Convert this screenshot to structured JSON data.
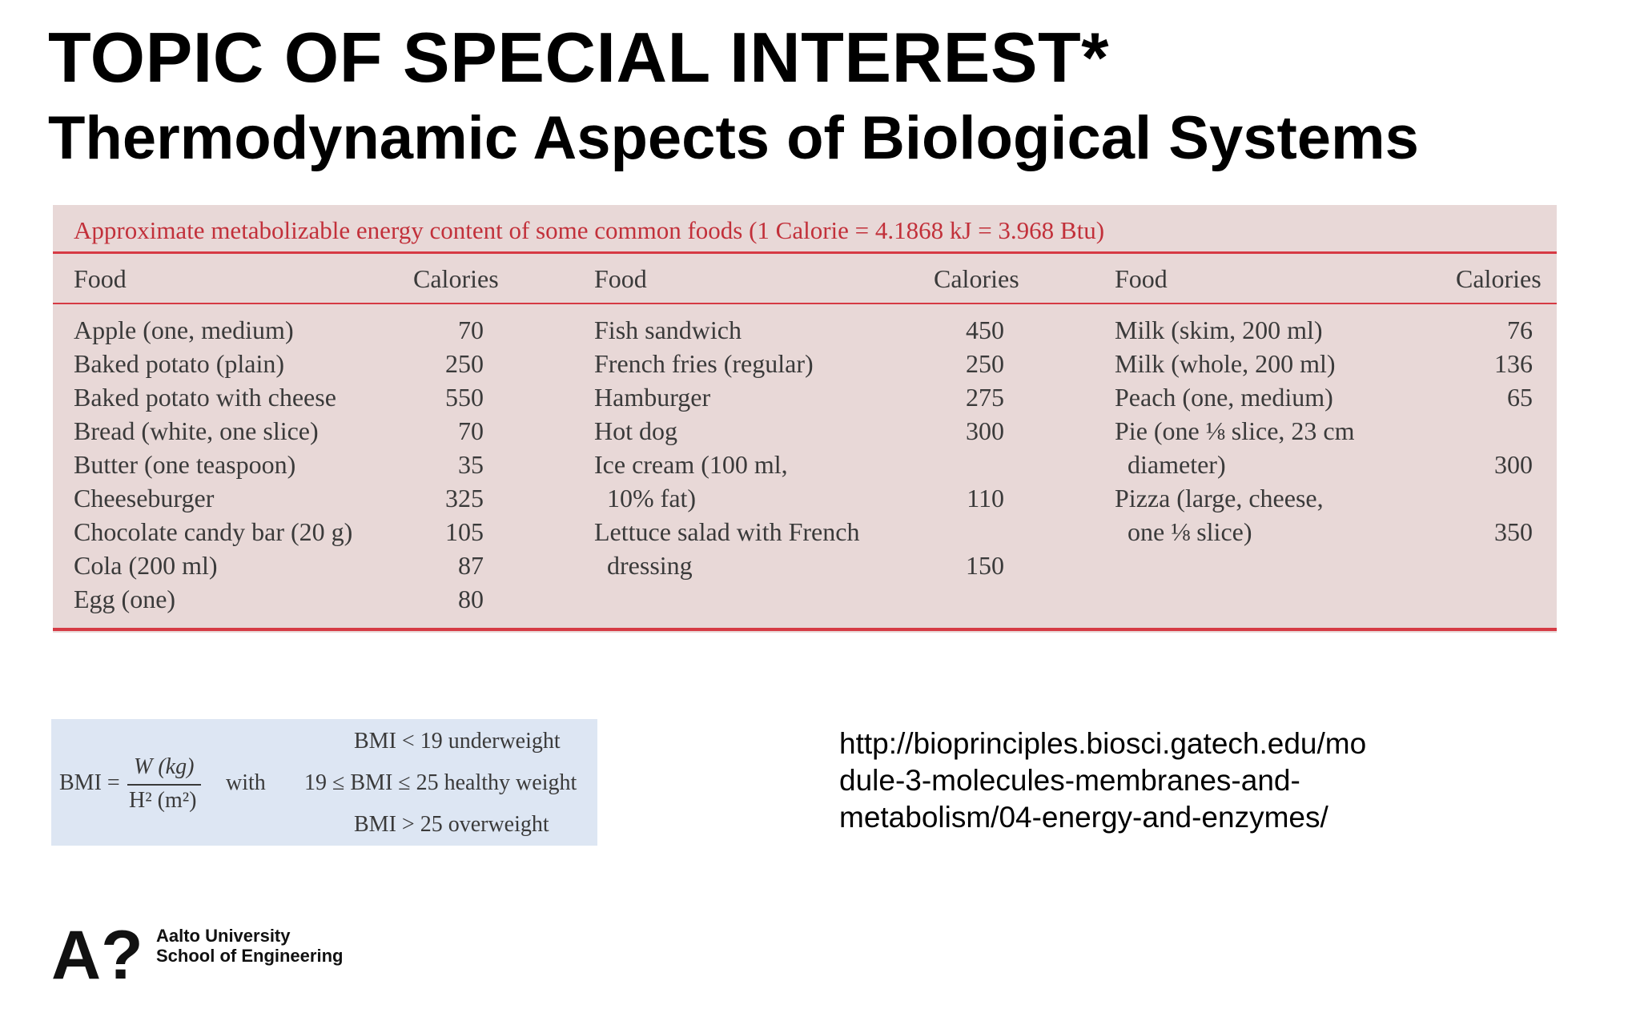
{
  "slide": {
    "title": "TOPIC OF SPECIAL INTEREST*",
    "subtitle": "Thermodynamic Aspects of Biological Systems"
  },
  "food_table": {
    "caption": "Approximate metabolizable energy content of some common foods (1 Calorie = 4.1868 kJ = 3.968 Btu)",
    "headers": {
      "food": "Food",
      "calories": "Calories"
    },
    "columns": [
      {
        "rows": [
          {
            "food": "Apple (one, medium)",
            "calories": "70"
          },
          {
            "food": "Baked potato (plain)",
            "calories": "250"
          },
          {
            "food": "Baked potato with cheese",
            "calories": "550"
          },
          {
            "food": "Bread (white, one slice)",
            "calories": "70"
          },
          {
            "food": "Butter (one teaspoon)",
            "calories": "35"
          },
          {
            "food": "Cheeseburger",
            "calories": "325"
          },
          {
            "food": "Chocolate candy bar (20 g)",
            "calories": "105"
          },
          {
            "food": "Cola (200 ml)",
            "calories": "87"
          },
          {
            "food": "Egg (one)",
            "calories": "80"
          }
        ]
      },
      {
        "rows": [
          {
            "food": "Fish sandwich",
            "calories": "450"
          },
          {
            "food": "French fries (regular)",
            "calories": "250"
          },
          {
            "food": "Hamburger",
            "calories": "275"
          },
          {
            "food": "Hot dog",
            "calories": "300"
          },
          {
            "food": "Ice cream (100 ml,",
            "calories": ""
          },
          {
            "food": "  10% fat)",
            "calories": "110"
          },
          {
            "food": "Lettuce salad with French",
            "calories": ""
          },
          {
            "food": "  dressing",
            "calories": "150"
          }
        ]
      },
      {
        "rows": [
          {
            "food": "Milk (skim, 200 ml)",
            "calories": "76"
          },
          {
            "food": "Milk (whole, 200 ml)",
            "calories": "136"
          },
          {
            "food": "Peach (one, medium)",
            "calories": "65"
          },
          {
            "food": "Pie (one ⅛ slice, 23 cm",
            "calories": ""
          },
          {
            "food": "  diameter)",
            "calories": "300"
          },
          {
            "food": "Pizza (large, cheese,",
            "calories": ""
          },
          {
            "food": "  one ⅛ slice)",
            "calories": "350"
          }
        ]
      }
    ]
  },
  "bmi": {
    "lhs": "BMI =",
    "numerator": "W (kg)",
    "denominator": "H² (m²)",
    "with": "with",
    "under": "BMI < 19 underweight",
    "healthy": "19 ≤ BMI ≤ 25 healthy weight",
    "over": "BMI > 25 overweight"
  },
  "source_url": {
    "line1": "http://bioprinciples.biosci.gatech.edu/mo",
    "line2": "dule-3-molecules-membranes-and-",
    "line3": "metabolism/04-energy-and-enzymes/"
  },
  "footer": {
    "logo_mark": "A?",
    "university": "Aalto University",
    "school": "School of Engineering"
  }
}
